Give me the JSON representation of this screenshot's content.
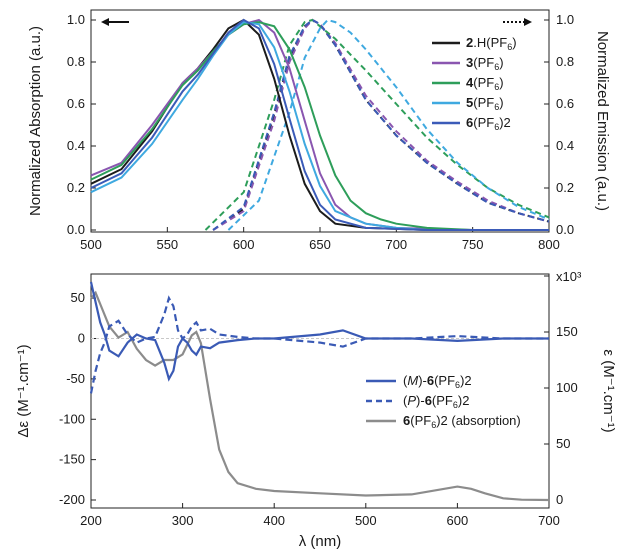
{
  "chart_data": [
    {
      "type": "line",
      "panel": "top",
      "title": "",
      "xlabel": "",
      "ylabel": "Normalized Absorption (a.u.)",
      "y2label": "Normalized Emission (a.u.)",
      "xlim": [
        500,
        800
      ],
      "ylim": [
        0,
        1.0
      ],
      "y2lim": [
        0,
        1.0
      ],
      "xticks": [
        "500",
        "550",
        "600",
        "650",
        "700",
        "750",
        "800"
      ],
      "yticks": [
        "0.0",
        "0.2",
        "0.4",
        "0.6",
        "0.8",
        "1.0"
      ],
      "y2ticks": [
        "0.0",
        "0.2",
        "0.4",
        "0.6",
        "0.8",
        "1.0"
      ],
      "grid": false,
      "legend_position": "top-right",
      "annotations": [
        "solid arrow pointing left (absorption, left axis)",
        "dotted arrow pointing right (emission, right axis)"
      ],
      "series": [
        {
          "name": "2.H(PF6)",
          "legend_bold": "2",
          "legend_rest": ".H(PF",
          "legend_sub": "6",
          "legend_end": ")",
          "color": "#1c1c1c",
          "absorption": {
            "x": [
              500,
              520,
              540,
              560,
              570,
              580,
              590,
              600,
              610,
              620,
              630,
              640,
              650,
              660,
              680,
              700,
              720,
              750,
              800
            ],
            "y": [
              0.22,
              0.29,
              0.47,
              0.7,
              0.77,
              0.86,
              0.96,
              1.0,
              0.93,
              0.72,
              0.45,
              0.22,
              0.09,
              0.03,
              0.01,
              0.005,
              0.0,
              0.0,
              0.0
            ]
          },
          "emission": {
            "x": [
              580,
              600,
              620,
              630,
              640,
              645,
              650,
              660,
              680,
              700,
              720,
              740,
              760,
              780,
              800
            ],
            "y": [
              0.0,
              0.1,
              0.55,
              0.82,
              0.97,
              1.0,
              0.98,
              0.88,
              0.62,
              0.45,
              0.32,
              0.22,
              0.13,
              0.08,
              0.04
            ]
          }
        },
        {
          "name": "3(PF6)",
          "legend_bold": "3",
          "legend_rest": "(PF",
          "legend_sub": "6",
          "legend_end": ")",
          "color": "#8a56b0",
          "absorption": {
            "x": [
              500,
              520,
              540,
              560,
              570,
              580,
              590,
              600,
              610,
              620,
              630,
              640,
              650,
              660,
              670,
              680,
              700,
              720,
              750,
              800
            ],
            "y": [
              0.26,
              0.32,
              0.5,
              0.7,
              0.77,
              0.85,
              0.93,
              0.98,
              1.0,
              0.94,
              0.77,
              0.52,
              0.27,
              0.12,
              0.06,
              0.03,
              0.01,
              0.005,
              0.0,
              0.0
            ]
          },
          "emission": {
            "x": [
              580,
              600,
              620,
              630,
              640,
              645,
              650,
              660,
              680,
              700,
              720,
              740,
              760,
              780,
              800
            ],
            "y": [
              0.0,
              0.09,
              0.52,
              0.8,
              0.96,
              1.0,
              0.98,
              0.89,
              0.64,
              0.47,
              0.33,
              0.23,
              0.14,
              0.08,
              0.04
            ]
          }
        },
        {
          "name": "4(PF6)",
          "legend_bold": "4",
          "legend_rest": "(PF",
          "legend_sub": "6",
          "legend_end": ")",
          "color": "#2e9e5a",
          "absorption": {
            "x": [
              500,
              520,
              540,
              560,
              570,
              580,
              590,
              600,
              610,
              620,
              630,
              640,
              650,
              660,
              670,
              680,
              690,
              700,
              720,
              750,
              800
            ],
            "y": [
              0.24,
              0.31,
              0.48,
              0.69,
              0.76,
              0.85,
              0.93,
              0.98,
              0.99,
              0.97,
              0.86,
              0.68,
              0.45,
              0.26,
              0.14,
              0.08,
              0.05,
              0.03,
              0.01,
              0.0,
              0.0
            ]
          },
          "emission": {
            "x": [
              575,
              600,
              620,
              630,
              640,
              645,
              650,
              660,
              680,
              700,
              720,
              740,
              760,
              780,
              800
            ],
            "y": [
              0.0,
              0.18,
              0.62,
              0.88,
              0.99,
              1.0,
              0.97,
              0.91,
              0.76,
              0.6,
              0.44,
              0.31,
              0.2,
              0.12,
              0.06
            ]
          }
        },
        {
          "name": "5(PF6)",
          "legend_bold": "5",
          "legend_rest": "(PF",
          "legend_sub": "6",
          "legend_end": ")",
          "color": "#3fa9e0",
          "absorption": {
            "x": [
              500,
              520,
              540,
              560,
              570,
              580,
              590,
              600,
              610,
              620,
              630,
              640,
              650,
              660,
              680,
              700,
              720,
              750,
              800
            ],
            "y": [
              0.18,
              0.25,
              0.41,
              0.62,
              0.72,
              0.83,
              0.93,
              0.99,
              0.98,
              0.87,
              0.66,
              0.41,
              0.21,
              0.09,
              0.03,
              0.01,
              0.0,
              0.0,
              0.0
            ]
          },
          "emission": {
            "x": [
              590,
              610,
              630,
              640,
              650,
              655,
              660,
              670,
              680,
              700,
              720,
              740,
              760,
              780,
              800
            ],
            "y": [
              0.0,
              0.14,
              0.56,
              0.82,
              0.96,
              1.0,
              0.99,
              0.94,
              0.86,
              0.68,
              0.48,
              0.32,
              0.2,
              0.11,
              0.05
            ]
          }
        },
        {
          "name": "6(PF6)2",
          "legend_bold": "6",
          "legend_rest": "(PF",
          "legend_sub": "6",
          "legend_end": ")2",
          "color": "#3b5bb8",
          "absorption": {
            "x": [
              500,
              520,
              540,
              560,
              570,
              580,
              590,
              600,
              610,
              620,
              630,
              640,
              650,
              660,
              680,
              700,
              720,
              750,
              800
            ],
            "y": [
              0.2,
              0.27,
              0.44,
              0.66,
              0.74,
              0.84,
              0.94,
              1.0,
              0.96,
              0.79,
              0.53,
              0.28,
              0.12,
              0.05,
              0.01,
              0.005,
              0.0,
              0.0,
              0.0
            ]
          },
          "emission": {
            "x": [
              580,
              600,
              620,
              630,
              640,
              645,
              650,
              660,
              680,
              700,
              720,
              740,
              760,
              780,
              800
            ],
            "y": [
              0.0,
              0.11,
              0.56,
              0.83,
              0.97,
              1.0,
              0.98,
              0.88,
              0.62,
              0.45,
              0.32,
              0.22,
              0.13,
              0.08,
              0.04
            ]
          }
        }
      ]
    },
    {
      "type": "line",
      "panel": "bottom",
      "title": "",
      "xlabel": "λ (nm)",
      "ylabel": "Δε (M⁻¹.cm⁻¹)",
      "y2label": "ε (M⁻¹.cm⁻¹)",
      "xlim": [
        200,
        700
      ],
      "ylim": [
        -200,
        70
      ],
      "y2lim": [
        0,
        200000
      ],
      "y2_exponent": "x10³",
      "xticks": [
        "200",
        "300",
        "400",
        "500",
        "600",
        "700"
      ],
      "yticks": [
        "-200",
        "-150",
        "-100",
        "-50",
        "0",
        "50"
      ],
      "y2ticks": [
        "0",
        "50",
        "100",
        "150",
        "200"
      ],
      "grid": false,
      "zero_line": true,
      "legend_position": "center-right",
      "series": [
        {
          "name": "(M)-6(PF6)2",
          "legend_pre": "(",
          "legend_italic": "M",
          "legend_mid": ")-",
          "legend_bold": "6",
          "legend_rest": "(PF",
          "legend_sub": "6",
          "legend_end": ")2",
          "color": "#3a5ab5",
          "style": "solid",
          "axis": "left",
          "x": [
            200,
            205,
            210,
            215,
            220,
            230,
            240,
            250,
            260,
            270,
            280,
            285,
            290,
            295,
            300,
            305,
            310,
            315,
            320,
            330,
            340,
            360,
            380,
            400,
            450,
            475,
            500,
            550,
            600,
            650,
            700
          ],
          "y": [
            70,
            45,
            20,
            5,
            -15,
            -22,
            -5,
            5,
            0,
            -2,
            -30,
            -50,
            -40,
            -10,
            0,
            -5,
            -15,
            -20,
            -10,
            -12,
            -5,
            -2,
            0,
            0,
            5,
            10,
            0,
            0,
            -3,
            0,
            0
          ]
        },
        {
          "name": "(P)-6(PF6)2",
          "legend_pre": "(",
          "legend_italic": "P",
          "legend_mid": ")-",
          "legend_bold": "6",
          "legend_rest": "(PF",
          "legend_sub": "6",
          "legend_end": ")2",
          "color": "#3a5ab5",
          "style": "dashed",
          "axis": "left",
          "x": [
            200,
            205,
            210,
            215,
            220,
            230,
            240,
            250,
            260,
            270,
            280,
            285,
            290,
            295,
            300,
            305,
            310,
            315,
            320,
            330,
            340,
            360,
            380,
            400,
            450,
            475,
            500,
            550,
            600,
            650,
            700
          ],
          "y": [
            -68,
            -40,
            -18,
            -5,
            15,
            22,
            5,
            -5,
            0,
            2,
            30,
            50,
            40,
            10,
            0,
            5,
            15,
            20,
            10,
            12,
            5,
            2,
            0,
            0,
            -5,
            -10,
            0,
            0,
            3,
            0,
            0
          ]
        },
        {
          "name": "6(PF6)2 (absorption)",
          "legend_bold": "6",
          "legend_rest": "(PF",
          "legend_sub": "6",
          "legend_end": ")2 (absorption)",
          "color": "#8c8c8c",
          "style": "solid",
          "axis": "right",
          "x": [
            200,
            205,
            210,
            220,
            230,
            240,
            250,
            260,
            270,
            280,
            290,
            300,
            310,
            315,
            320,
            330,
            340,
            350,
            360,
            380,
            400,
            450,
            500,
            550,
            600,
            615,
            630,
            650,
            670,
            700
          ],
          "y": [
            180000,
            185000,
            175000,
            155000,
            145000,
            150000,
            135000,
            125000,
            120000,
            125000,
            125000,
            130000,
            147000,
            150000,
            140000,
            90000,
            45000,
            25000,
            15000,
            10000,
            8000,
            6000,
            4000,
            5000,
            12000,
            10000,
            6000,
            1500,
            300,
            0
          ]
        }
      ]
    }
  ]
}
